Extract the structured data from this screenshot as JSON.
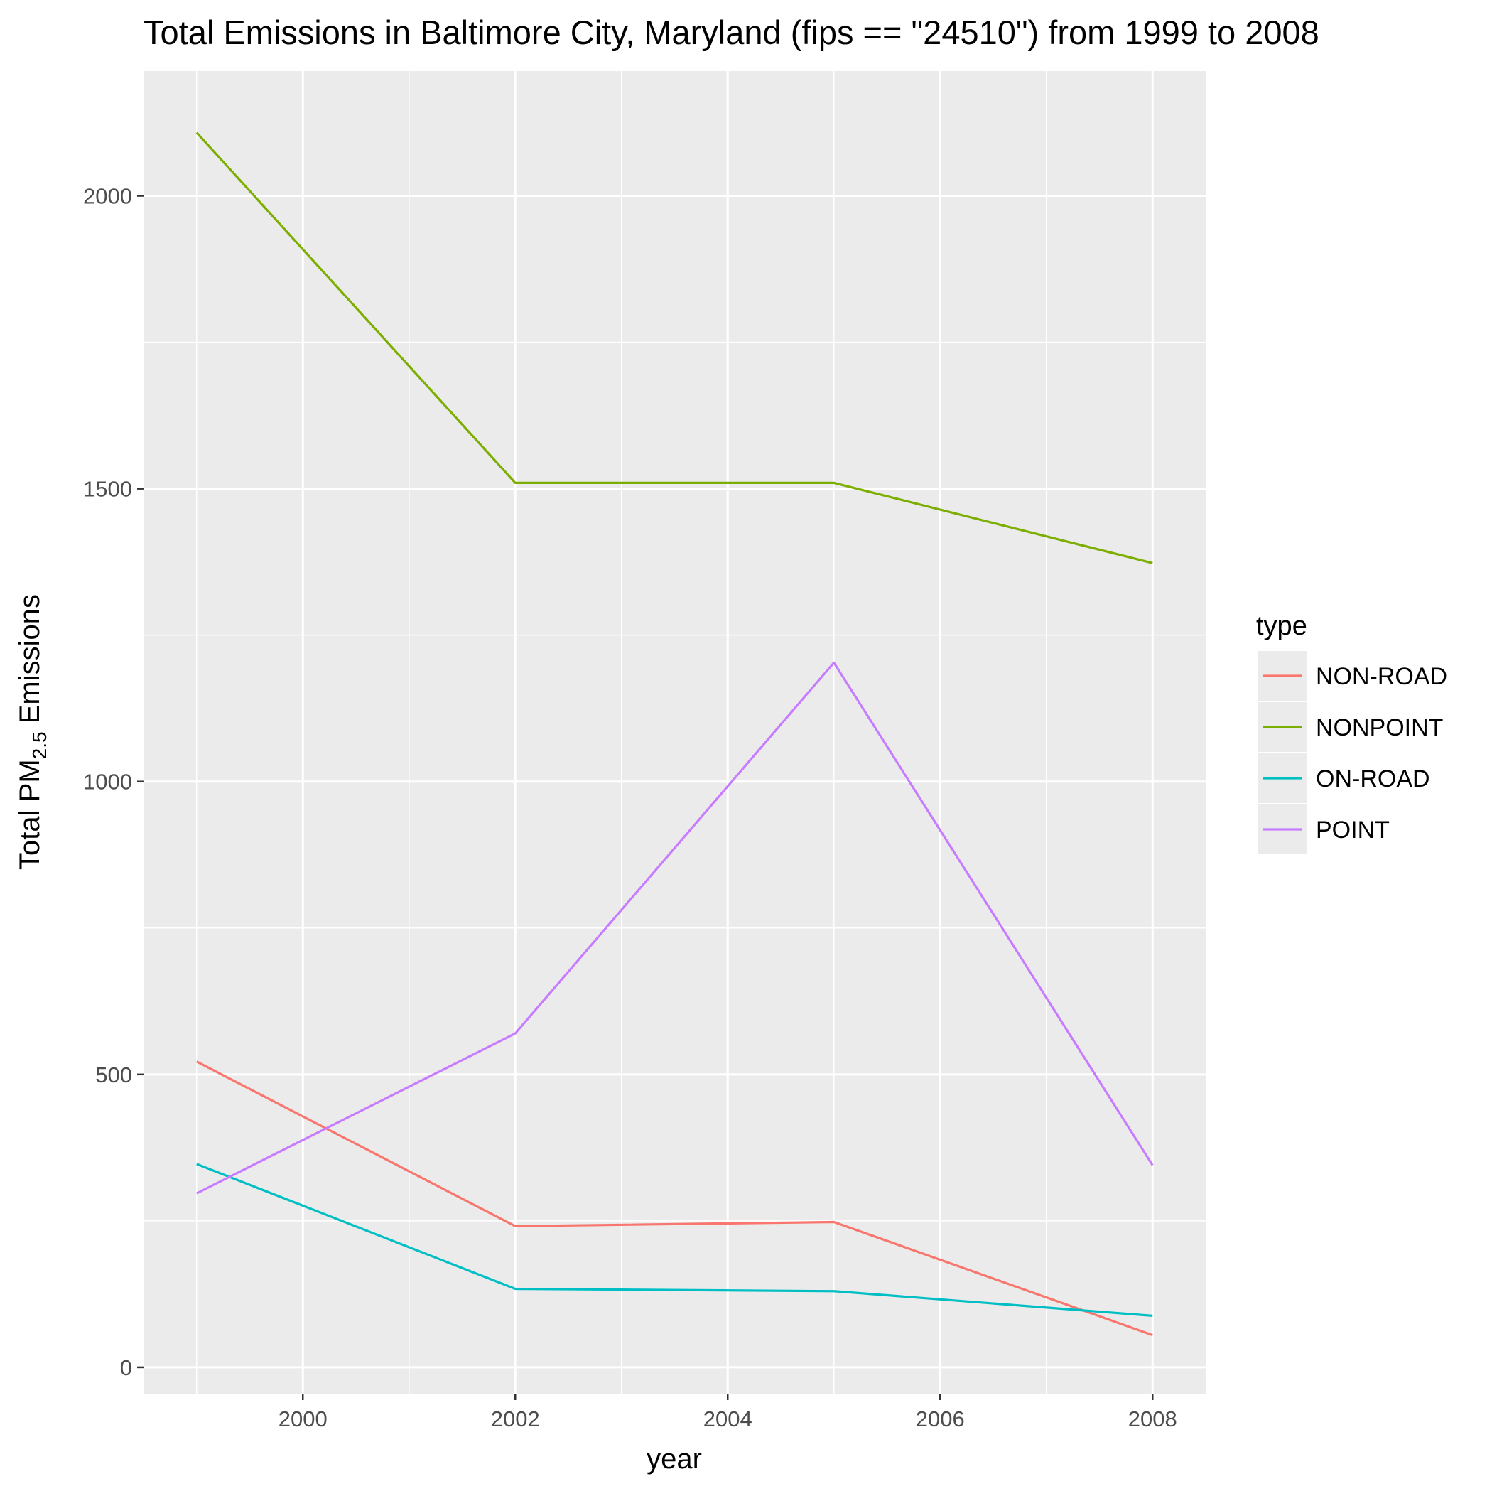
{
  "chart_data": {
    "type": "line",
    "title": "Total Emissions in Baltimore City, Maryland (fips == \"24510\") from 1999 to 2008",
    "xlabel": "year",
    "ylabel": {
      "prefix": "Total PM",
      "subscript": "2.5",
      "suffix": " Emissions"
    },
    "x": [
      1999,
      2002,
      2005,
      2008
    ],
    "xlim": [
      1998.5,
      2008.5
    ],
    "ylim": [
      -45,
      2213
    ],
    "x_ticks": [
      2000,
      2002,
      2004,
      2006,
      2008
    ],
    "x_tick_labels": [
      "2000",
      "2002",
      "2004",
      "2006",
      "2008"
    ],
    "y_ticks": [
      0,
      500,
      1000,
      1500,
      2000
    ],
    "y_tick_labels": [
      "0",
      "500",
      "1000",
      "1500",
      "2000"
    ],
    "x_minor": [
      1999,
      2001,
      2003,
      2005,
      2007
    ],
    "y_minor": [
      250,
      750,
      1250,
      1750
    ],
    "grid": true,
    "legend": {
      "title": "type",
      "position": "right"
    },
    "series": [
      {
        "name": "NON-ROAD",
        "color": "#F8766D",
        "values": [
          522,
          241,
          248,
          55
        ]
      },
      {
        "name": "NONPOINT",
        "color": "#7CAE00",
        "values": [
          2108,
          1510,
          1510,
          1373
        ]
      },
      {
        "name": "ON-ROAD",
        "color": "#00BFC4",
        "values": [
          347,
          134,
          130,
          88
        ]
      },
      {
        "name": "POINT",
        "color": "#C77CFF",
        "values": [
          297,
          570,
          1203,
          345
        ]
      }
    ]
  }
}
